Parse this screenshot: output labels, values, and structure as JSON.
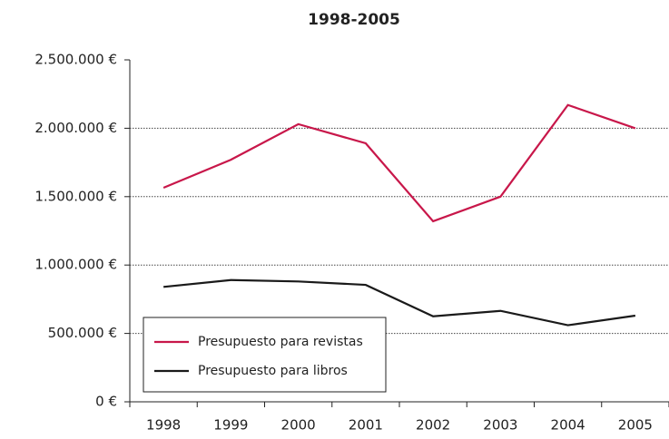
{
  "chart_data": {
    "type": "line",
    "title": "1998-2005",
    "categories": [
      "1998",
      "1999",
      "2000",
      "2001",
      "2002",
      "2003",
      "2004",
      "2005"
    ],
    "series": [
      {
        "name": "Presupuesto para revistas",
        "color": "#c8174a",
        "values": [
          1565000,
          1770000,
          2030000,
          1890000,
          1320000,
          1500000,
          2170000,
          2000000
        ]
      },
      {
        "name": "Presupuesto para libros",
        "color": "#1a1a1a",
        "values": [
          840000,
          890000,
          880000,
          855000,
          625000,
          665000,
          560000,
          630000
        ]
      }
    ],
    "ylim": [
      0,
      2500000
    ],
    "yticks": [
      {
        "value": 0,
        "label": "0 €"
      },
      {
        "value": 500000,
        "label": "500.000 €"
      },
      {
        "value": 1000000,
        "label": "1.000.000 €"
      },
      {
        "value": 1500000,
        "label": "1.500.000 €"
      },
      {
        "value": 2000000,
        "label": "2.000.000 €"
      },
      {
        "value": 2500000,
        "label": "2.500.000 €"
      }
    ],
    "grid": true,
    "legend": "lower-left"
  }
}
